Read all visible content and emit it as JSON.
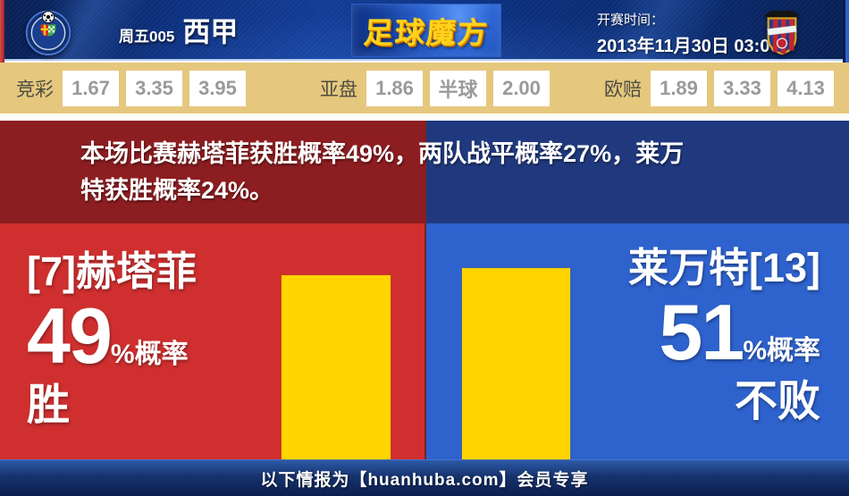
{
  "header": {
    "match_code": "周五005",
    "league": "西甲",
    "brand": "足球魔方",
    "kickoff_label": "开赛时间：",
    "kickoff_time": "2013年11月30日 03:00",
    "home_badge": "getafe-crest",
    "away_badge": "levante-crest"
  },
  "odds_bar": {
    "groups": [
      {
        "label": "竞彩",
        "values": [
          "1.67",
          "3.35",
          "3.95"
        ]
      },
      {
        "label": "亚盘",
        "values": [
          "1.86",
          "半球",
          "2.00"
        ]
      },
      {
        "label": "欧赔",
        "values": [
          "1.89",
          "3.33",
          "4.13"
        ]
      }
    ]
  },
  "summary": {
    "text": "本场比赛赫塔菲获胜概率49%，两队战平概率27%，莱万特获胜概率24%。",
    "lines": [
      "本场比赛赫塔菲获胜概率49%，两队战平概率27%，莱万",
      "特获胜概率24%。"
    ]
  },
  "home_panel": {
    "team": "[7]赫塔菲",
    "percent": 49,
    "percent_suffix": "%概率",
    "outcome": "胜"
  },
  "away_panel": {
    "team": "莱万特[13]",
    "percent": 51,
    "percent_suffix": "%概率",
    "outcome": "不败"
  },
  "footer": {
    "text": "以下情报为【huanhuba.com】会员专享"
  },
  "colors": {
    "home_dark": "#8c1d20",
    "home_bright": "#d02f2f",
    "away_dark": "#20397e",
    "away_bright": "#2e62cd",
    "bar_yellow": "#ffd400",
    "odds_bg": "#e5c87d",
    "brand_gold": "#ffd21c"
  },
  "chart_data": {
    "type": "bar",
    "categories": [
      "[7]赫塔菲 胜",
      "莱万特[13] 不败"
    ],
    "values": [
      49,
      51
    ],
    "unit": "%",
    "bar_color": "#ffd400"
  }
}
